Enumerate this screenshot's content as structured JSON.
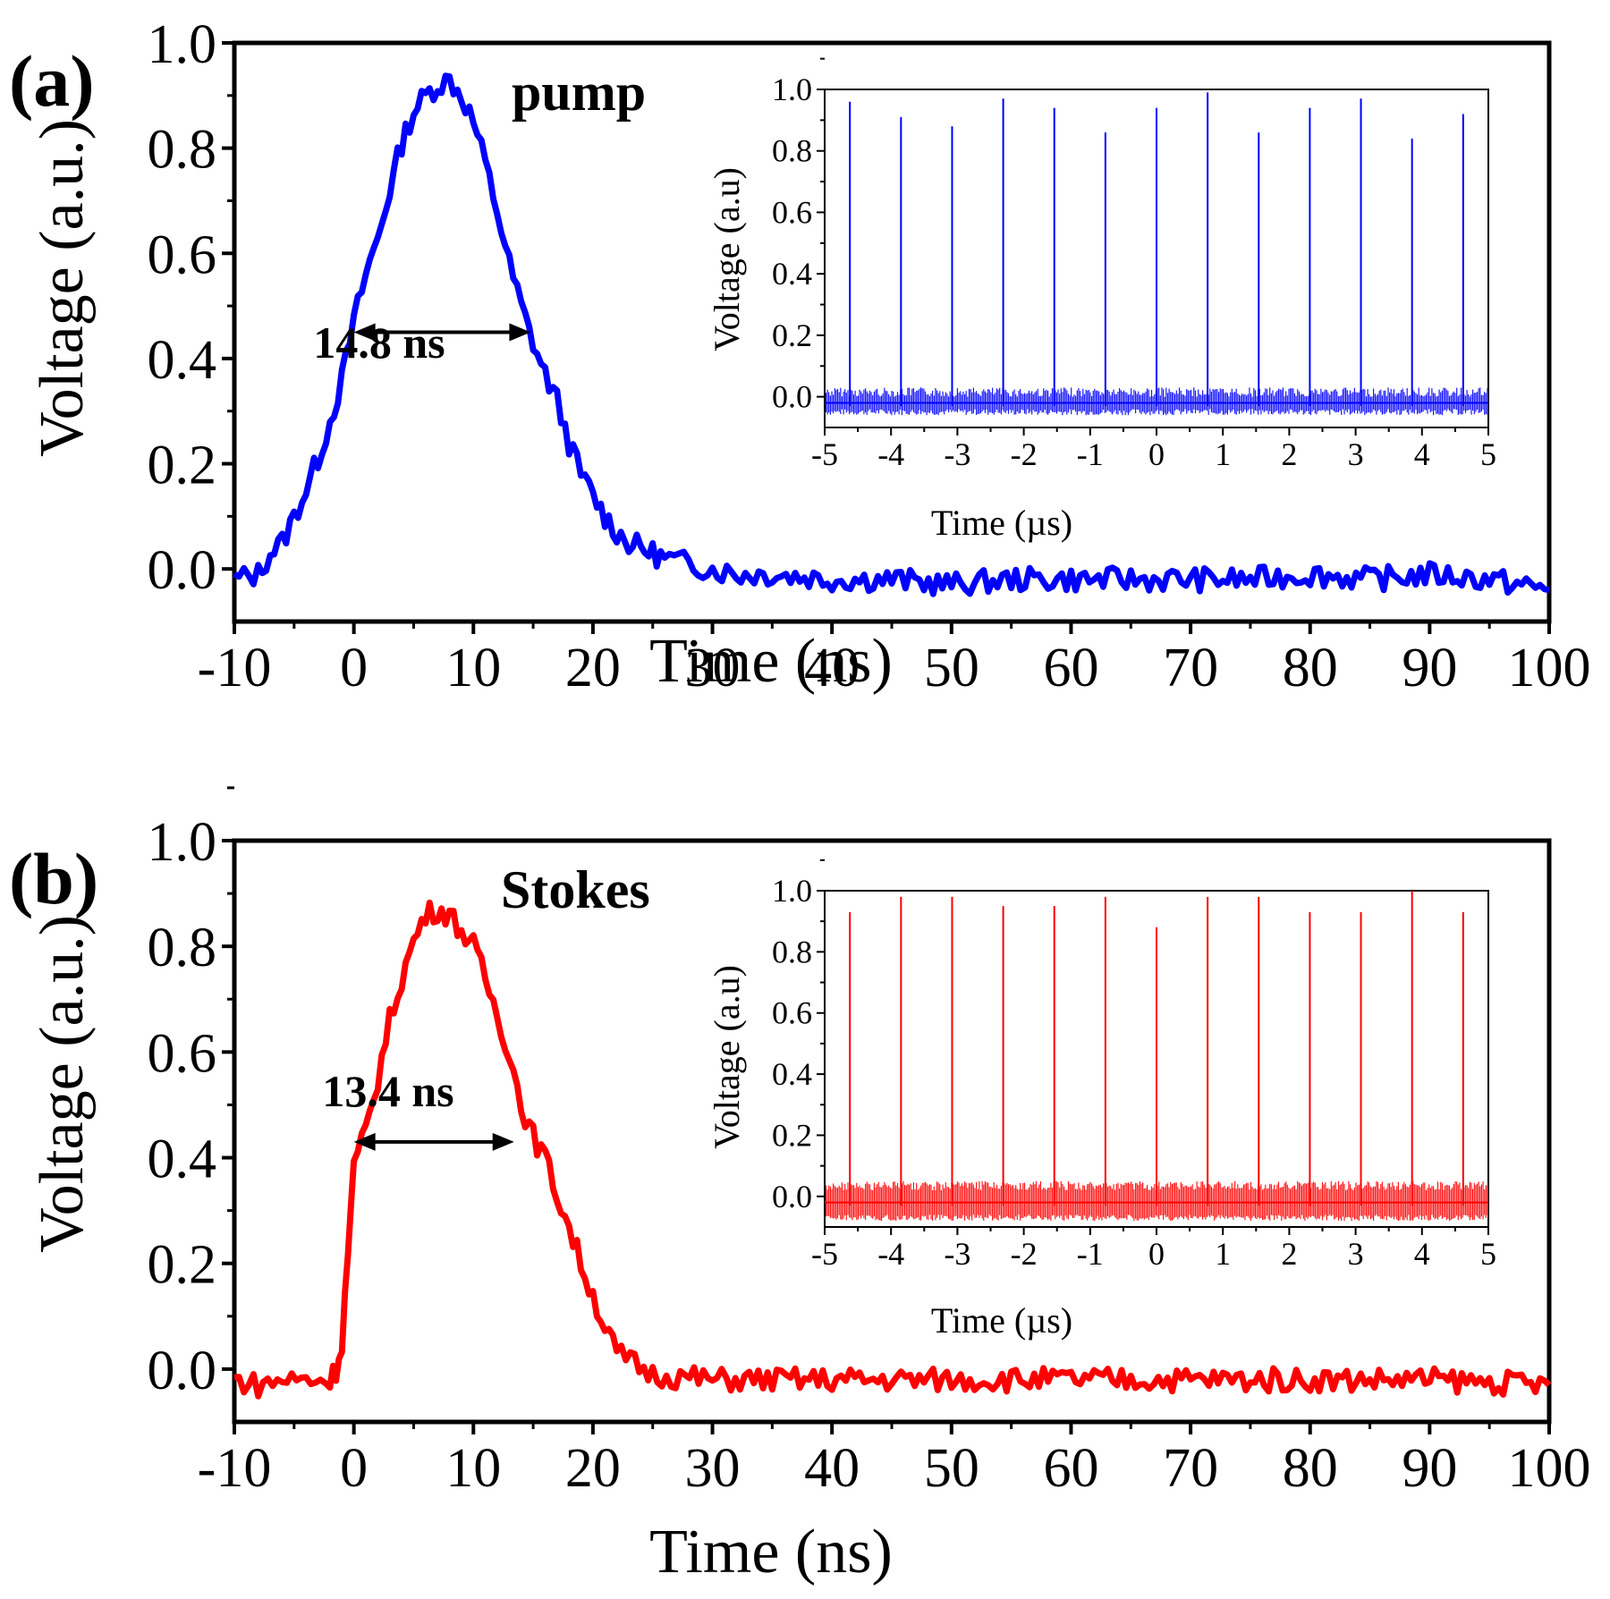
{
  "chart_data": [
    {
      "type": "line",
      "panel_label": "(a)",
      "series_label": "pump",
      "color": "#0000ff",
      "xlabel": "Time (ns)",
      "ylabel": "Voltage (a.u.)",
      "xlim": [
        -10,
        100
      ],
      "ylim": [
        -0.1,
        1.0
      ],
      "xticks": [
        "-10",
        "0",
        "10",
        "20",
        "30",
        "40",
        "50",
        "60",
        "70",
        "80",
        "90",
        "100"
      ],
      "yticks": [
        "0.0",
        "0.2",
        "0.4",
        "0.6",
        "0.8",
        "1.0"
      ],
      "series": [
        {
          "name": "pump",
          "x": [
            -10,
            -8,
            -7,
            -6,
            -5,
            -4,
            -3,
            -2,
            -1,
            0,
            1,
            2,
            3,
            4,
            5,
            6,
            7,
            8,
            9,
            10,
            11,
            12,
            13,
            14,
            15,
            16,
            17,
            18,
            19,
            20,
            21,
            22,
            23,
            24,
            25,
            26,
            28,
            30,
            32,
            35,
            40,
            45,
            50,
            55,
            60,
            65,
            70,
            75,
            80,
            85,
            90,
            95,
            100
          ],
          "y": [
            -0.02,
            -0.01,
            0.03,
            0.05,
            0.1,
            0.15,
            0.21,
            0.28,
            0.36,
            0.47,
            0.56,
            0.63,
            0.72,
            0.81,
            0.87,
            0.9,
            0.92,
            0.93,
            0.9,
            0.85,
            0.77,
            0.68,
            0.58,
            0.5,
            0.43,
            0.37,
            0.32,
            0.24,
            0.18,
            0.14,
            0.1,
            0.07,
            0.05,
            0.04,
            0.03,
            0.02,
            0.01,
            0.0,
            -0.01,
            -0.01,
            -0.02,
            -0.02,
            -0.03,
            -0.02,
            -0.02,
            -0.02,
            -0.02,
            -0.02,
            -0.01,
            -0.02,
            -0.01,
            -0.02,
            -0.04
          ]
        }
      ],
      "annotation": {
        "text": "14.8 ns",
        "x_start": 0.0,
        "x_end": 14.8,
        "y": 0.45
      },
      "inset": {
        "type": "line",
        "xlabel": "Time (µs)",
        "ylabel": "Voltage (a.u)",
        "xlim": [
          -5,
          5
        ],
        "ylim": [
          -0.1,
          1.0
        ],
        "xticks": [
          "-5",
          "-4",
          "-3",
          "-2",
          "-1",
          "0",
          "1",
          "2",
          "3",
          "4",
          "5"
        ],
        "yticks": [
          "0.0",
          "0.2",
          "0.4",
          "0.6",
          "0.8",
          "1.0"
        ],
        "noise_band": [
          -0.06,
          0.03
        ],
        "pulse_times": [
          -4.62,
          -3.85,
          -3.08,
          -2.31,
          -1.54,
          -0.77,
          0.0,
          0.77,
          1.54,
          2.31,
          3.08,
          3.85,
          4.62
        ],
        "pulse_peaks": [
          0.96,
          0.91,
          0.88,
          0.97,
          0.94,
          0.86,
          0.94,
          0.99,
          0.86,
          0.94,
          0.97,
          0.84,
          0.92
        ]
      }
    },
    {
      "type": "line",
      "panel_label": "(b)",
      "series_label": "Stokes",
      "color": "#ff0000",
      "xlabel": "Time (ns)",
      "ylabel": "Voltage (a.u.)",
      "xlim": [
        -10,
        100
      ],
      "ylim": [
        -0.1,
        1.0
      ],
      "xticks": [
        "-10",
        "0",
        "10",
        "20",
        "30",
        "40",
        "50",
        "60",
        "70",
        "80",
        "90",
        "100"
      ],
      "yticks": [
        "0.0",
        "0.2",
        "0.4",
        "0.6",
        "0.8",
        "1.0"
      ],
      "series": [
        {
          "name": "Stokes",
          "x": [
            -10,
            -8,
            -6,
            -4,
            -2,
            -1.5,
            -1,
            -0.5,
            0,
            1,
            2,
            3,
            4,
            5,
            6,
            7,
            8,
            9,
            10,
            11,
            12,
            13,
            14,
            15,
            16,
            17,
            18,
            19,
            20,
            21,
            22,
            25,
            30,
            40,
            50,
            60,
            70,
            80,
            90,
            100
          ],
          "y": [
            -0.02,
            -0.03,
            -0.02,
            -0.02,
            -0.02,
            0.0,
            0.05,
            0.22,
            0.38,
            0.45,
            0.55,
            0.66,
            0.74,
            0.81,
            0.86,
            0.87,
            0.86,
            0.83,
            0.8,
            0.74,
            0.67,
            0.6,
            0.5,
            0.44,
            0.4,
            0.33,
            0.27,
            0.2,
            0.14,
            0.08,
            0.03,
            -0.01,
            -0.02,
            -0.02,
            -0.02,
            -0.02,
            -0.02,
            -0.02,
            -0.02,
            -0.03
          ]
        }
      ],
      "annotation": {
        "text": "13.4 ns",
        "x_start": 0.0,
        "x_end": 13.4,
        "y": 0.43
      },
      "inset": {
        "type": "line",
        "xlabel": "Time (µs)",
        "ylabel": "Voltage (a.u)",
        "xlim": [
          -5,
          5
        ],
        "ylim": [
          -0.1,
          1.0
        ],
        "xticks": [
          "-5",
          "-4",
          "-3",
          "-2",
          "-1",
          "0",
          "1",
          "2",
          "3",
          "4",
          "5"
        ],
        "yticks": [
          "0.0",
          "0.2",
          "0.4",
          "0.6",
          "0.8",
          "1.0"
        ],
        "noise_band": [
          -0.08,
          0.05
        ],
        "pulse_times": [
          -4.62,
          -3.85,
          -3.08,
          -2.31,
          -1.54,
          -0.77,
          0.0,
          0.77,
          1.54,
          2.31,
          3.08,
          3.85,
          4.62
        ],
        "pulse_peaks": [
          0.93,
          0.98,
          0.98,
          0.95,
          0.95,
          0.98,
          0.88,
          0.98,
          0.98,
          0.93,
          0.93,
          1.0,
          0.93
        ]
      }
    }
  ]
}
